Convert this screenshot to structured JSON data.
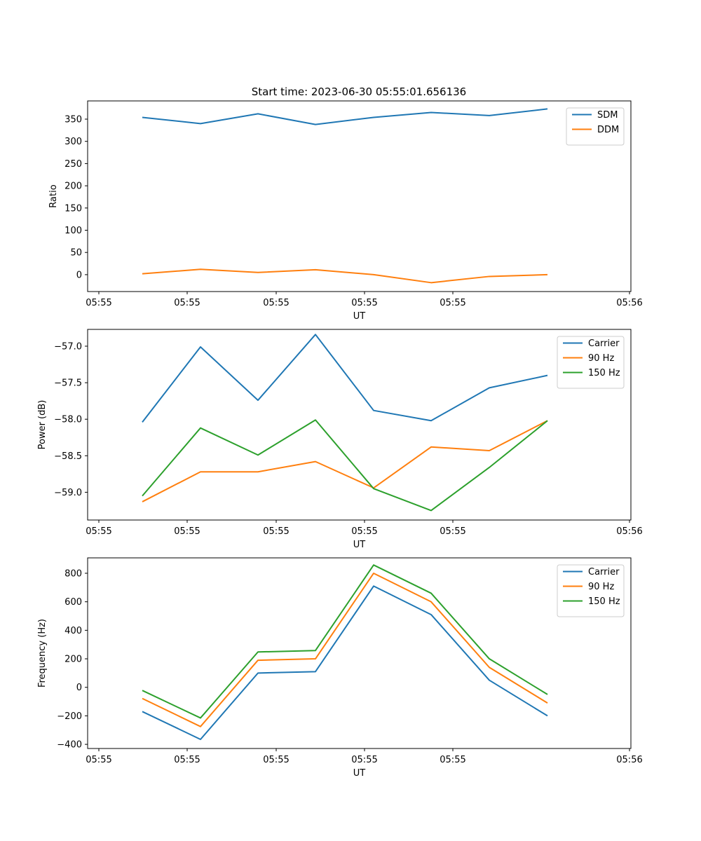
{
  "figure": {
    "title": "Start time: 2023-06-30 05:55:01.656136"
  },
  "chart_data": [
    {
      "type": "line",
      "x_tick_labels": [
        "05:55",
        "05:55",
        "05:55",
        "05:55",
        "05:55",
        "05:56"
      ],
      "xlabel": "UT",
      "ylabel": "Ratio",
      "ylim": [
        -38,
        391
      ],
      "y_ticks": [
        0,
        50,
        100,
        150,
        200,
        250,
        300,
        350
      ],
      "legend_position": "upper-right",
      "grid": false,
      "series": [
        {
          "name": "SDM",
          "color": "#1f77b4",
          "values": [
            354,
            340,
            362,
            338,
            354,
            365,
            358,
            373
          ]
        },
        {
          "name": "DDM",
          "color": "#ff7f0e",
          "values": [
            2,
            12,
            5,
            11,
            0,
            -18,
            -4,
            0
          ]
        }
      ]
    },
    {
      "type": "line",
      "x_tick_labels": [
        "05:55",
        "05:55",
        "05:55",
        "05:55",
        "05:55",
        "05:56"
      ],
      "xlabel": "UT",
      "ylabel": "Power (dB)",
      "ylim": [
        -59.38,
        -56.77
      ],
      "y_ticks": [
        -59.0,
        -58.5,
        -58.0,
        -57.5,
        -57.0
      ],
      "y_tick_labels": [
        "−59.0",
        "−58.5",
        "−58.0",
        "−57.5",
        "−57.0"
      ],
      "legend_position": "upper-right",
      "grid": false,
      "series": [
        {
          "name": "Carrier",
          "color": "#1f77b4",
          "values": [
            -58.04,
            -57.01,
            -57.74,
            -56.84,
            -57.88,
            -58.02,
            -57.57,
            -57.4
          ]
        },
        {
          "name": "90 Hz",
          "color": "#ff7f0e",
          "values": [
            -59.13,
            -58.72,
            -58.72,
            -58.58,
            -58.94,
            -58.38,
            -58.43,
            -58.02
          ]
        },
        {
          "name": "150 Hz",
          "color": "#2ca02c",
          "values": [
            -59.05,
            -58.12,
            -58.49,
            -58.01,
            -58.95,
            -59.25,
            -58.66,
            -58.02
          ]
        }
      ]
    },
    {
      "type": "line",
      "x_tick_labels": [
        "05:55",
        "05:55",
        "05:55",
        "05:55",
        "05:55",
        "05:56"
      ],
      "xlabel": "UT",
      "ylabel": "Frequency (Hz)",
      "ylim": [
        -429,
        908
      ],
      "y_ticks": [
        -400,
        -200,
        0,
        200,
        400,
        600,
        800
      ],
      "y_tick_labels": [
        "−400",
        "−200",
        "0",
        "200",
        "400",
        "600",
        "800"
      ],
      "legend_position": "upper-right",
      "grid": false,
      "series": [
        {
          "name": "Carrier",
          "color": "#1f77b4",
          "values": [
            -170,
            -365,
            100,
            110,
            710,
            510,
            50,
            -200
          ]
        },
        {
          "name": "90 Hz",
          "color": "#ff7f0e",
          "values": [
            -78,
            -275,
            190,
            200,
            800,
            600,
            140,
            -110
          ]
        },
        {
          "name": "150 Hz",
          "color": "#2ca02c",
          "values": [
            -22,
            -215,
            248,
            258,
            858,
            660,
            200,
            -50
          ]
        }
      ]
    }
  ]
}
